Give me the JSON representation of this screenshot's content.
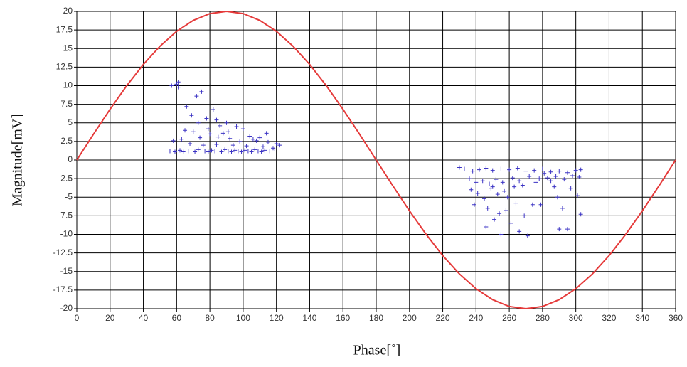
{
  "chart_data": {
    "type": "scatter",
    "x_label": "Phase[˚]",
    "y_label": "Magnitude[mV]",
    "xlim": [
      0,
      360
    ],
    "ylim": [
      -20,
      20
    ],
    "xticks": [
      0,
      20,
      40,
      60,
      80,
      100,
      120,
      140,
      160,
      180,
      200,
      220,
      240,
      260,
      280,
      300,
      320,
      340,
      360
    ],
    "yticks": [
      -20,
      -17.5,
      -15,
      -12.5,
      -10,
      -7.5,
      -5,
      -2.5,
      0,
      2.5,
      5,
      7.5,
      10,
      12.5,
      15,
      17.5,
      20
    ],
    "grid": true,
    "series": [
      {
        "type": "line",
        "color": "#e53a3a",
        "x": [
          0,
          10,
          20,
          30,
          40,
          50,
          60,
          70,
          80,
          90,
          100,
          110,
          120,
          130,
          140,
          150,
          160,
          170,
          180,
          190,
          200,
          210,
          220,
          230,
          240,
          250,
          260,
          270,
          280,
          290,
          300,
          310,
          320,
          330,
          340,
          350,
          360
        ],
        "values": [
          0,
          3.47,
          6.84,
          10,
          12.86,
          15.32,
          17.32,
          18.79,
          19.7,
          20,
          19.7,
          18.79,
          17.32,
          15.32,
          12.86,
          10,
          6.84,
          3.47,
          0,
          -3.47,
          -6.84,
          -10,
          -12.86,
          -15.32,
          -17.32,
          -18.79,
          -19.7,
          -20,
          -19.7,
          -18.79,
          -17.32,
          -15.32,
          -12.86,
          -10,
          -6.84,
          -3.47,
          0
        ]
      },
      {
        "type": "scatter",
        "color": "#3b33c4",
        "x": [
          60,
          57,
          61,
          61,
          75,
          72,
          66,
          82,
          69,
          78,
          84,
          90,
          86,
          96,
          100,
          65,
          70,
          80,
          88,
          104,
          110,
          74,
          63,
          58,
          92,
          98,
          115,
          120,
          108,
          68,
          76,
          84,
          94,
          102,
          112,
          118,
          56,
          59,
          62,
          64,
          67,
          71,
          73,
          77,
          79,
          81,
          83,
          87,
          89,
          91,
          93,
          95,
          97,
          99,
          101,
          103,
          105,
          107,
          109,
          111,
          113,
          116,
          119,
          122,
          85,
          79,
          73,
          91,
          106,
          114,
          230,
          233,
          238,
          242,
          246,
          250,
          255,
          260,
          265,
          270,
          275,
          280,
          285,
          290,
          295,
          300,
          303,
          236,
          240,
          244,
          248,
          252,
          256,
          262,
          266,
          272,
          278,
          283,
          288,
          293,
          298,
          302,
          237,
          241,
          245,
          249,
          253,
          257,
          263,
          268,
          276,
          287,
          297,
          301,
          239,
          247,
          254,
          258,
          264,
          251,
          246,
          261,
          266,
          271,
          255,
          269,
          274,
          279,
          289,
          292,
          290,
          295,
          303,
          250,
          259,
          285,
          281
        ],
        "values": [
          10.2,
          10,
          9.8,
          10.5,
          9.2,
          8.6,
          7.2,
          6.8,
          6,
          5.6,
          5.4,
          5,
          4.6,
          4.5,
          4.2,
          4,
          3.8,
          3.5,
          3.6,
          3.2,
          3,
          3,
          2.8,
          2.6,
          2.9,
          2.5,
          2.4,
          2.2,
          2.6,
          2.2,
          2,
          2.1,
          2,
          1.9,
          1.8,
          1.6,
          1.2,
          1.1,
          1.3,
          1.1,
          1.2,
          1.1,
          1.4,
          1.2,
          1.1,
          1.3,
          1.2,
          1.1,
          1.4,
          1.2,
          1.1,
          1.3,
          1.2,
          1.1,
          1.3,
          1.2,
          1.1,
          1.4,
          1.2,
          1.1,
          1.3,
          1.2,
          1.5,
          2,
          3.1,
          4.2,
          5,
          3.8,
          2.8,
          3.6,
          -1,
          -1.2,
          -1.5,
          -1.3,
          -1.1,
          -1.4,
          -1.2,
          -1.3,
          -1.1,
          -1.5,
          -1.4,
          -1.2,
          -1.6,
          -1.5,
          -1.7,
          -1.4,
          -1.3,
          -2.5,
          -3,
          -2.8,
          -3.2,
          -2.6,
          -3,
          -2.4,
          -2.8,
          -2.2,
          -2.5,
          -2.4,
          -2.2,
          -2.6,
          -2.1,
          -2.3,
          -4,
          -4.5,
          -5.2,
          -3.8,
          -4.6,
          -4.2,
          -3.6,
          -3.4,
          -3,
          -3.6,
          -3.8,
          -4.8,
          -6,
          -6.5,
          -7.2,
          -6.8,
          -5.8,
          -8,
          -9,
          -8.5,
          -9.6,
          -10.2,
          -10,
          -7.5,
          -6,
          -6,
          -5,
          -6.5,
          -9.3,
          -9.3,
          -7.3,
          -3.6,
          -5,
          -2.8,
          -1.8
        ]
      }
    ]
  }
}
